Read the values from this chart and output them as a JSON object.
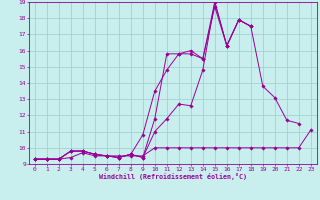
{
  "bg_color": "#c8eeee",
  "line_color": "#990099",
  "grid_color": "#99cccc",
  "xlabel": "Windchill (Refroidissement éolien,°C)",
  "xlim": [
    -0.5,
    23.5
  ],
  "ylim": [
    9,
    19
  ],
  "xticks": [
    0,
    1,
    2,
    3,
    4,
    5,
    6,
    7,
    8,
    9,
    10,
    11,
    12,
    13,
    14,
    15,
    16,
    17,
    18,
    19,
    20,
    21,
    22,
    23
  ],
  "yticks": [
    9,
    10,
    11,
    12,
    13,
    14,
    15,
    16,
    17,
    18,
    19
  ],
  "series": [
    {
      "x": [
        0,
        1,
        2,
        3,
        4,
        5,
        6,
        7,
        8,
        9,
        10,
        11,
        12,
        13,
        14,
        15,
        16,
        17,
        18,
        19,
        20,
        21,
        22,
        23
      ],
      "y": [
        9.3,
        9.3,
        9.3,
        9.4,
        9.7,
        9.5,
        9.5,
        9.5,
        9.5,
        9.5,
        10.0,
        10.0,
        10.0,
        10.0,
        10.0,
        10.0,
        10.0,
        10.0,
        10.0,
        10.0,
        10.0,
        10.0,
        10.0,
        11.1
      ]
    },
    {
      "x": [
        0,
        1,
        2,
        3,
        4,
        5,
        6,
        7,
        8,
        9,
        10,
        11,
        12,
        13,
        14,
        15,
        16,
        17,
        18,
        19,
        20,
        21,
        22,
        23
      ],
      "y": [
        9.3,
        9.3,
        9.3,
        9.8,
        9.8,
        9.6,
        9.5,
        9.4,
        9.6,
        9.4,
        11.0,
        11.8,
        12.7,
        12.6,
        14.8,
        19.0,
        16.3,
        17.9,
        17.5,
        13.8,
        13.1,
        11.7,
        11.5,
        null
      ]
    },
    {
      "x": [
        0,
        1,
        2,
        3,
        4,
        5,
        6,
        7,
        8,
        9,
        10,
        11,
        12,
        13,
        14,
        15,
        16,
        17,
        18,
        19,
        20,
        21,
        22,
        23
      ],
      "y": [
        9.3,
        9.3,
        9.3,
        9.8,
        9.8,
        9.6,
        9.5,
        9.4,
        9.6,
        9.4,
        11.8,
        15.8,
        15.8,
        15.8,
        15.5,
        18.7,
        16.3,
        17.9,
        17.5,
        null,
        null,
        null,
        null,
        null
      ]
    },
    {
      "x": [
        0,
        1,
        2,
        3,
        4,
        5,
        6,
        7,
        8,
        9,
        10,
        11,
        12,
        13,
        14,
        15,
        16,
        17,
        18,
        19,
        20,
        21,
        22,
        23
      ],
      "y": [
        9.3,
        9.3,
        9.3,
        9.8,
        9.8,
        9.6,
        9.5,
        9.4,
        9.6,
        10.8,
        13.5,
        14.8,
        15.8,
        16.0,
        15.5,
        19.0,
        16.3,
        17.9,
        17.5,
        null,
        null,
        null,
        null,
        null
      ]
    }
  ]
}
